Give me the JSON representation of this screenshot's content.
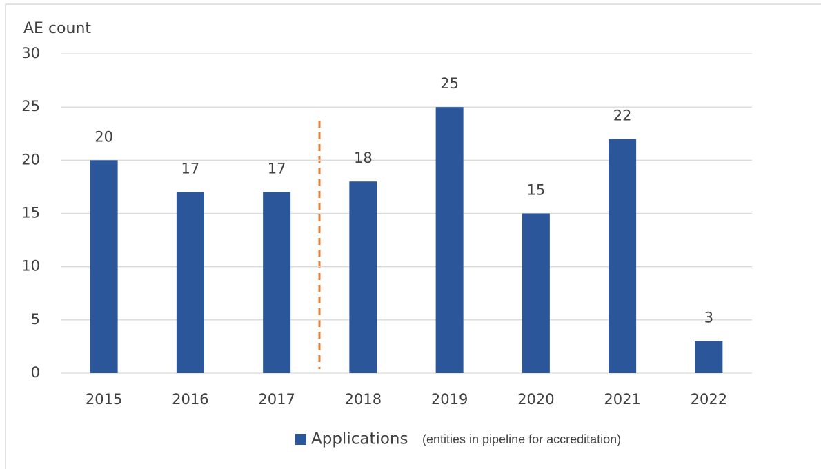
{
  "chart_data": {
    "type": "bar",
    "y_axis_label": "AE count",
    "categories": [
      "2015",
      "2016",
      "2017",
      "2018",
      "2019",
      "2020",
      "2021",
      "2022"
    ],
    "series": [
      {
        "name": "Applications",
        "color": "#2b579a",
        "values": [
          20,
          17,
          17,
          18,
          25,
          15,
          22,
          3
        ]
      }
    ],
    "legend_note": "(entities in pipeline for accreditation)",
    "ylim": [
      0,
      30
    ],
    "yticks": [
      0,
      5,
      10,
      15,
      20,
      25,
      30
    ],
    "grid": true,
    "legend": "bottom"
  }
}
